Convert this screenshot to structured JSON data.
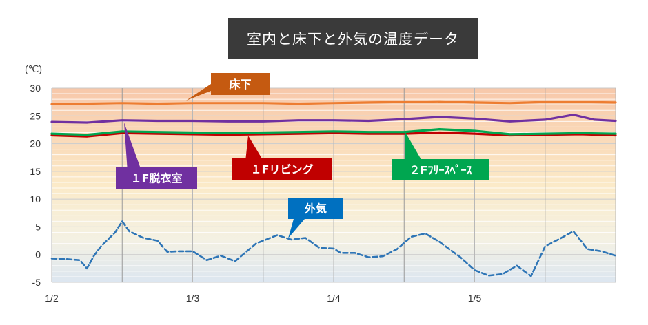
{
  "chart_data": {
    "type": "line",
    "title": "室内と床下と外気の温度データ",
    "y_unit": "(℃)",
    "ylim": [
      -5,
      30
    ],
    "y_ticks": [
      30,
      25,
      20,
      15,
      10,
      5,
      0,
      -5
    ],
    "x_ticks": [
      "1/2",
      "1/3",
      "1/4",
      "1/5"
    ],
    "xlim": [
      0,
      4
    ],
    "grid": true,
    "background_bands": [
      "#f7c8aa",
      "#fbeac8",
      "#dce6f0"
    ],
    "series": [
      {
        "name": "床下",
        "color": "#ed7d31",
        "style": "solid",
        "x": [
          0,
          0.25,
          0.5,
          0.75,
          1.0,
          1.25,
          1.5,
          1.75,
          2.0,
          2.25,
          2.5,
          2.75,
          3.0,
          3.25,
          3.5,
          3.75,
          4.0
        ],
        "y": [
          27.1,
          27.2,
          27.3,
          27.2,
          27.3,
          27.3,
          27.3,
          27.2,
          27.3,
          27.4,
          27.5,
          27.6,
          27.4,
          27.3,
          27.5,
          27.5,
          27.4
        ]
      },
      {
        "name": "1F脱衣室",
        "color": "#7030a0",
        "style": "solid",
        "x": [
          0,
          0.25,
          0.5,
          0.75,
          1.0,
          1.25,
          1.5,
          1.75,
          2.0,
          2.25,
          2.5,
          2.75,
          3.0,
          3.25,
          3.5,
          3.7,
          3.85,
          4.0
        ],
        "y": [
          23.9,
          23.8,
          24.2,
          24.1,
          24.1,
          24.0,
          24.0,
          24.2,
          24.2,
          24.1,
          24.4,
          24.8,
          24.5,
          24.0,
          24.3,
          25.2,
          24.3,
          24.1
        ]
      },
      {
        "name": "1Fリビング",
        "color": "#c00000",
        "style": "solid",
        "x": [
          0,
          0.25,
          0.5,
          0.75,
          1.0,
          1.25,
          1.5,
          1.75,
          2.0,
          2.25,
          2.5,
          2.75,
          3.0,
          3.25,
          3.5,
          3.75,
          4.0
        ],
        "y": [
          21.5,
          21.3,
          21.9,
          21.8,
          21.7,
          21.6,
          21.7,
          21.8,
          21.9,
          21.8,
          21.8,
          22.0,
          21.8,
          21.5,
          21.6,
          21.7,
          21.5
        ]
      },
      {
        "name": "2Fフリースペース",
        "color": "#00a650",
        "style": "solid",
        "x": [
          0,
          0.25,
          0.5,
          0.75,
          1.0,
          1.25,
          1.5,
          1.75,
          2.0,
          2.25,
          2.5,
          2.75,
          3.0,
          3.25,
          3.5,
          3.75,
          4.0
        ],
        "y": [
          21.8,
          21.6,
          22.2,
          22.1,
          22.0,
          21.9,
          22.0,
          22.1,
          22.2,
          22.1,
          22.1,
          22.6,
          22.3,
          21.7,
          21.8,
          21.9,
          21.8
        ]
      },
      {
        "name": "外気",
        "color": "#2e75b6",
        "style": "dashed",
        "x": [
          0,
          0.1,
          0.2,
          0.25,
          0.3,
          0.35,
          0.45,
          0.5,
          0.55,
          0.65,
          0.75,
          0.82,
          0.9,
          1.0,
          1.1,
          1.2,
          1.3,
          1.45,
          1.6,
          1.7,
          1.8,
          1.9,
          2.0,
          2.05,
          2.15,
          2.25,
          2.35,
          2.45,
          2.55,
          2.65,
          2.75,
          2.9,
          3.0,
          3.1,
          3.2,
          3.3,
          3.4,
          3.5,
          3.6,
          3.7,
          3.8,
          3.9,
          4.0
        ],
        "y": [
          -0.7,
          -0.8,
          -1.0,
          -2.5,
          -0.2,
          1.5,
          4.0,
          6.0,
          4.2,
          3.0,
          2.5,
          0.5,
          0.6,
          0.6,
          -1.0,
          -0.2,
          -1.2,
          2.0,
          3.5,
          2.7,
          3.0,
          1.2,
          1.1,
          0.3,
          0.3,
          -0.5,
          -0.3,
          1.0,
          3.2,
          3.8,
          2.3,
          -0.5,
          -2.8,
          -3.8,
          -3.5,
          -2.0,
          -3.9,
          1.5,
          2.8,
          4.2,
          1.0,
          0.6,
          -0.2
        ]
      }
    ],
    "callouts": [
      {
        "label": "床下",
        "series": "床下",
        "color": "#c55a11"
      },
      {
        "label": "１F脱衣室",
        "series": "1F脱衣室",
        "color": "#7030a0"
      },
      {
        "label": "１Fリビング",
        "series": "1Fリビング",
        "color": "#c00000"
      },
      {
        "label": "２Fﾌﾘｰｽﾍﾟｰｽ",
        "series": "2Fフリースペース",
        "color": "#00a650"
      },
      {
        "label": "外気",
        "series": "外気",
        "color": "#0070c0"
      }
    ]
  }
}
